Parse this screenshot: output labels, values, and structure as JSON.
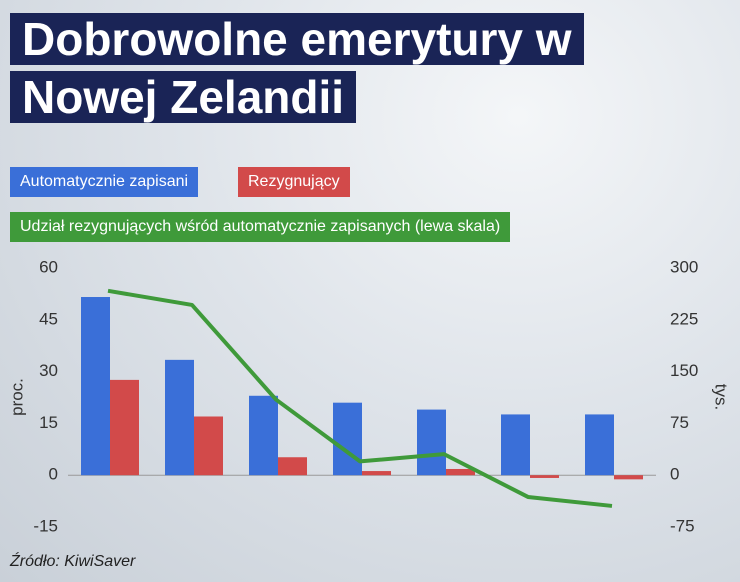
{
  "chart_data": {
    "type": "bar",
    "title": "Dobrowolne emerytury w Nowej Zelandii",
    "source": "Źródło: KiwiSaver",
    "ylabel": "proc.",
    "y2label": "tys.",
    "categories": [
      null,
      null,
      null,
      null,
      null,
      null,
      null
    ],
    "ylim": [
      -15,
      60
    ],
    "yticks": [
      -15,
      0,
      15,
      30,
      45,
      60
    ],
    "y2lim": [
      -75,
      300
    ],
    "y2ticks": [
      -75,
      0,
      75,
      150,
      225,
      300
    ],
    "series": [
      {
        "name": "Automatycznie zapisani",
        "type": "bar",
        "axis": "y2",
        "color": "#3a6fd8",
        "values": [
          258,
          167,
          115,
          105,
          95,
          88,
          88
        ]
      },
      {
        "name": "Rezygnujący",
        "type": "bar",
        "axis": "y2",
        "color": "#d24a4a",
        "values": [
          138,
          85,
          26,
          6,
          9,
          -4,
          -6
        ]
      },
      {
        "name": "Udział rezygnujących wśród automatycznie zapisanych (lewa skala)",
        "type": "line",
        "axis": "y",
        "color": "#3f9a3a",
        "values": [
          53.4,
          49.3,
          21.9,
          4.0,
          6.1,
          -6.3,
          -8.9
        ]
      }
    ]
  }
}
